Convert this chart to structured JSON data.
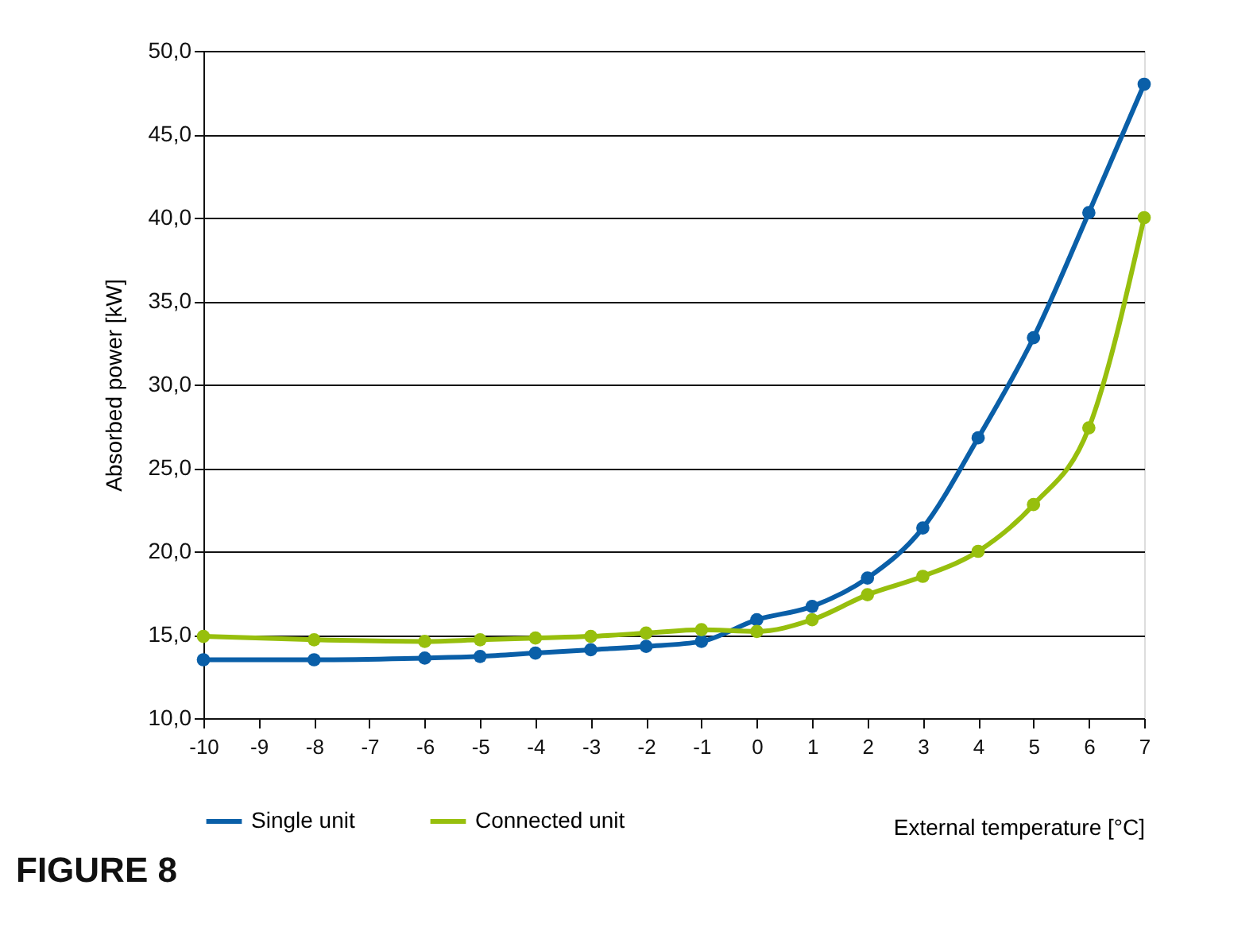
{
  "chart_data": {
    "type": "line",
    "xlabel": "External temperature [°C]",
    "ylabel": "Absorbed power  [kW]",
    "x": [
      -10,
      -8,
      -6,
      -5,
      -4,
      -3,
      -2,
      -1,
      0,
      1,
      2,
      3,
      4,
      5,
      6,
      7
    ],
    "series": [
      {
        "name": "Single unit",
        "color": "#0a5fa8",
        "values": [
          13.5,
          13.5,
          13.6,
          13.7,
          13.9,
          14.1,
          14.3,
          14.6,
          15.9,
          16.7,
          18.4,
          21.4,
          26.8,
          32.8,
          40.3,
          48.0
        ]
      },
      {
        "name": "Connected unit",
        "color": "#97bf0d",
        "values": [
          14.9,
          14.7,
          14.6,
          14.7,
          14.8,
          14.9,
          15.1,
          15.3,
          15.2,
          15.9,
          17.4,
          18.5,
          20.0,
          22.8,
          27.4,
          40.0
        ]
      }
    ],
    "xlim": [
      -10,
      7
    ],
    "xticks": [
      -10,
      -9,
      -8,
      -7,
      -6,
      -5,
      -4,
      -3,
      -2,
      -1,
      0,
      1,
      2,
      3,
      4,
      5,
      6,
      7
    ],
    "ylim": [
      10,
      50
    ],
    "yticks": [
      {
        "value": 10,
        "label": "10,0"
      },
      {
        "value": 15,
        "label": "15,0"
      },
      {
        "value": 20,
        "label": "20,0"
      },
      {
        "value": 25,
        "label": "25,0"
      },
      {
        "value": 30,
        "label": "30,0"
      },
      {
        "value": 35,
        "label": "35,0"
      },
      {
        "value": 40,
        "label": "40,0"
      },
      {
        "value": 45,
        "label": "45,0"
      },
      {
        "value": 50,
        "label": "50,0"
      }
    ],
    "grid": "y",
    "legend": "bottom",
    "marker": "circle",
    "line_style": "solid",
    "annotations": [
      "FIGURE 8"
    ]
  }
}
